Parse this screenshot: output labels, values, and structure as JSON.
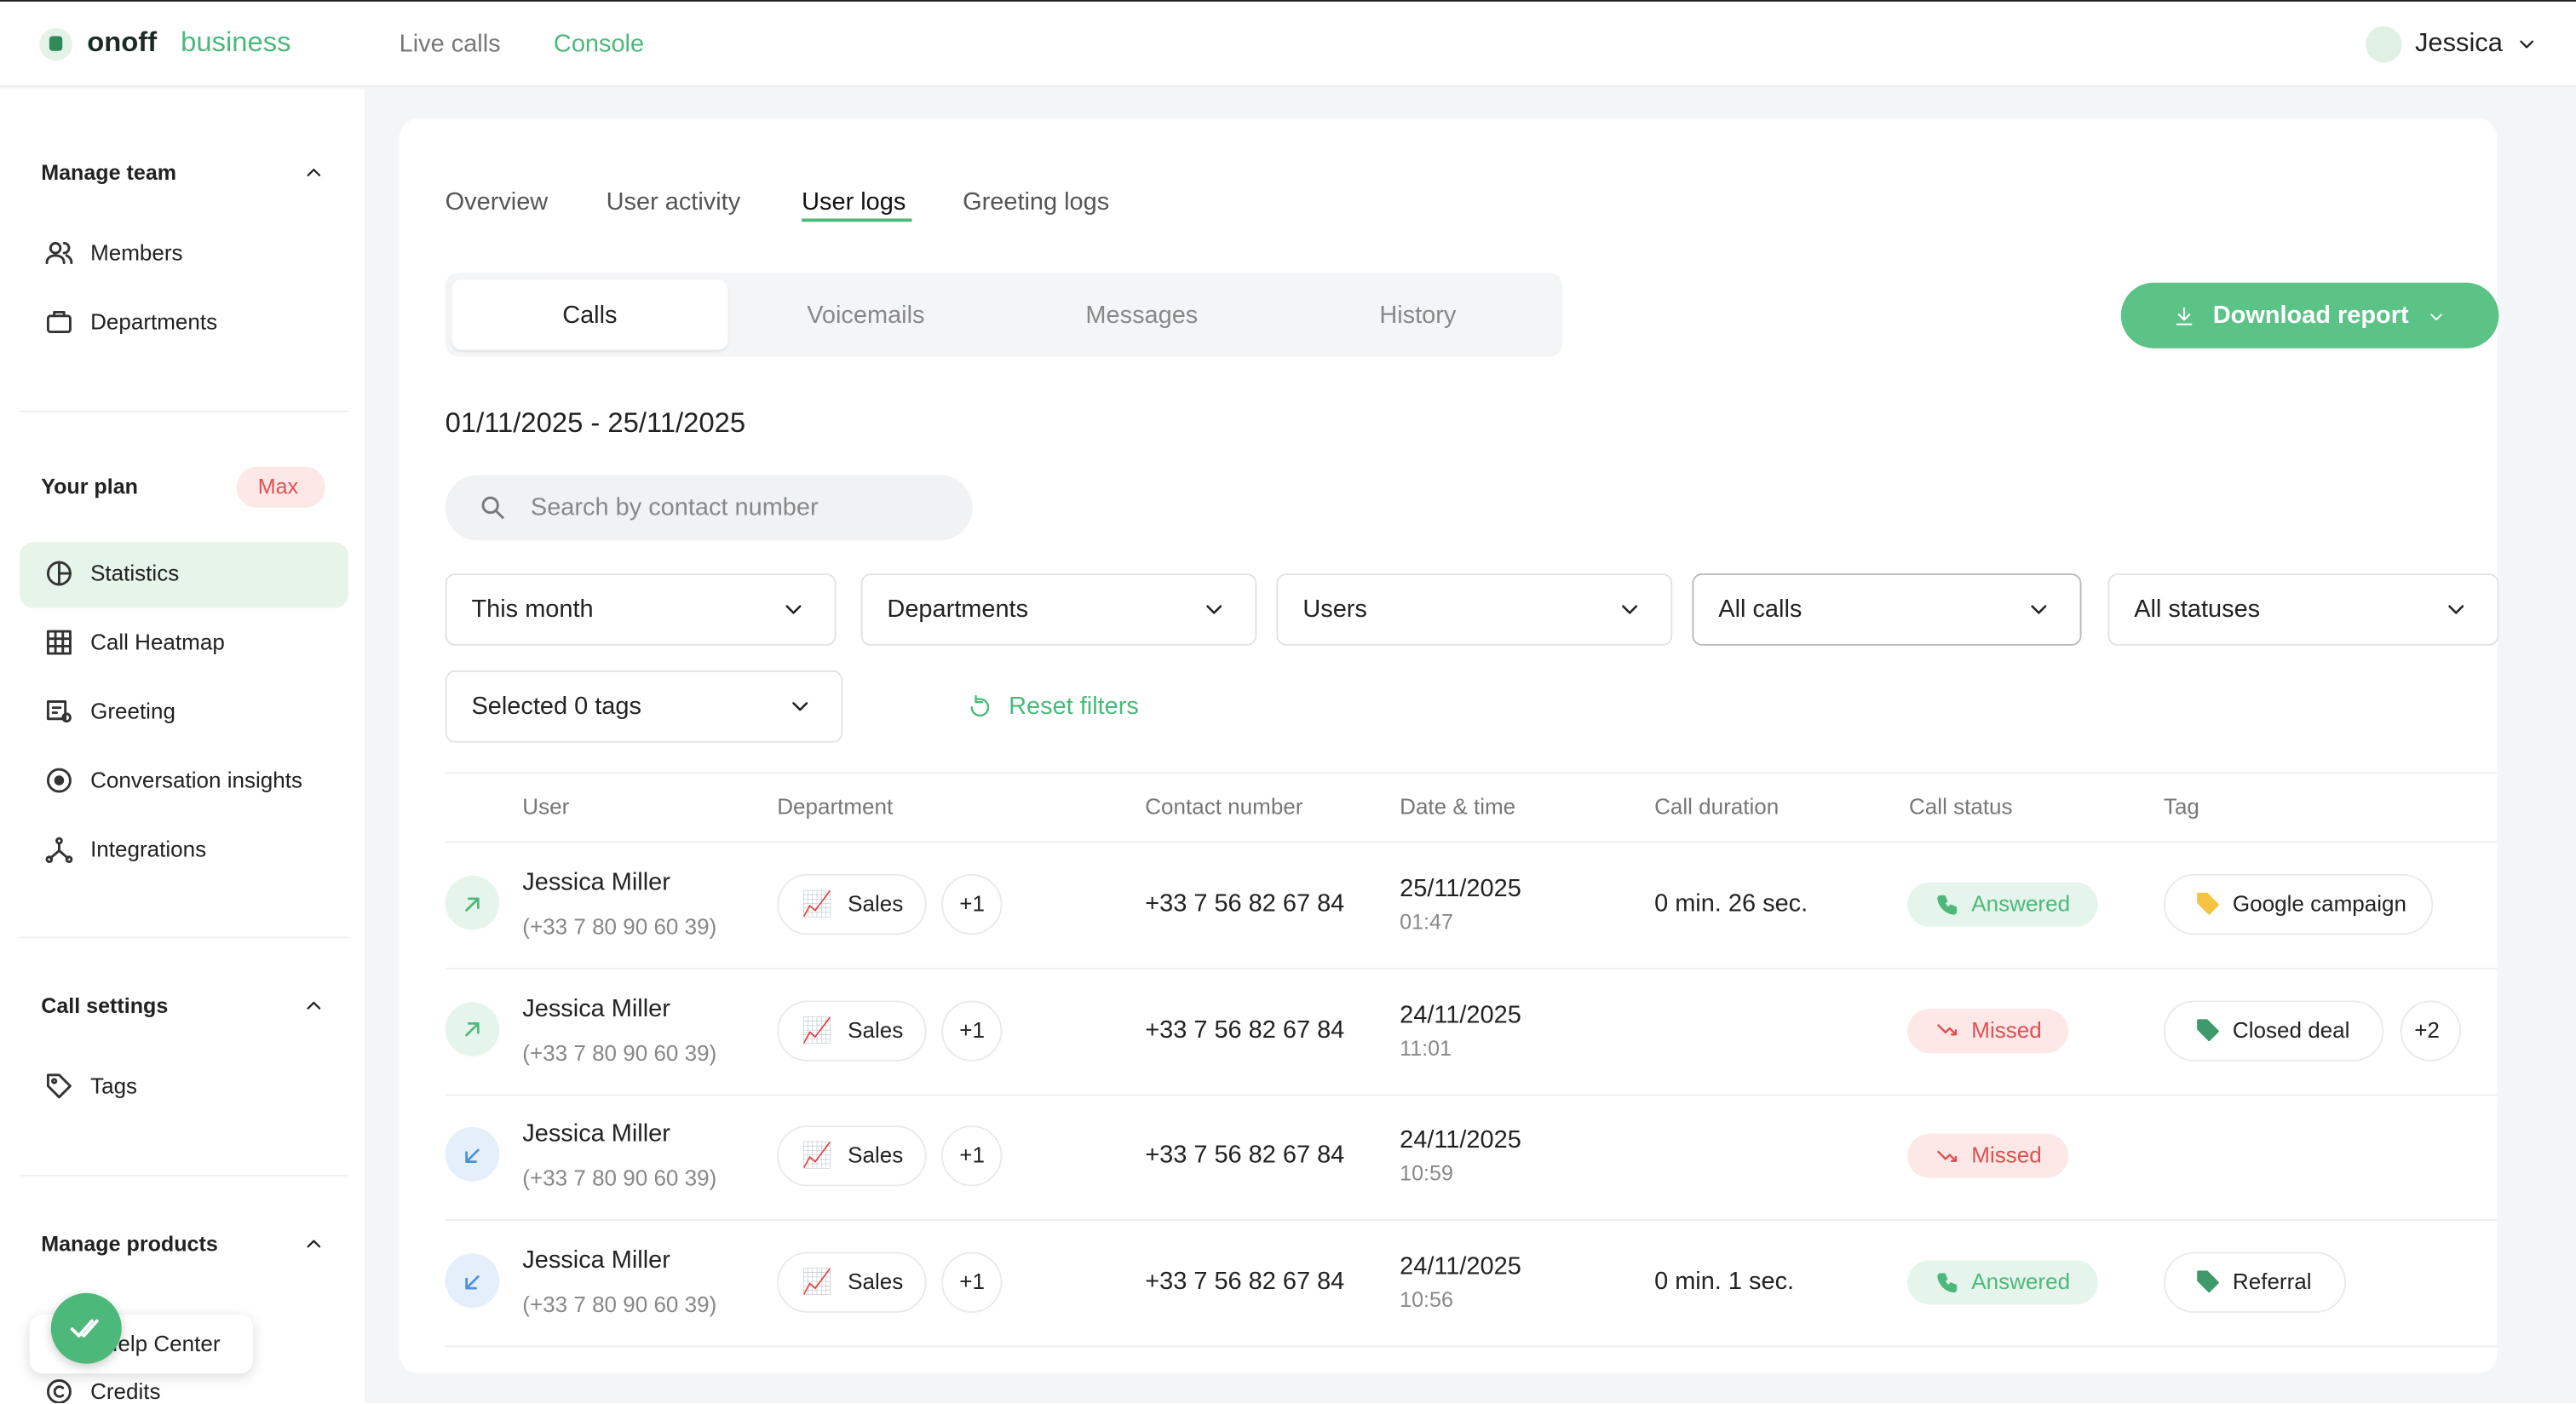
{
  "header": {
    "brand": "onoff",
    "brand_suffix": "business",
    "nav": [
      "Live calls",
      "Console"
    ],
    "user": "Jessica"
  },
  "sidebar": {
    "sections": [
      {
        "title": "Manage team",
        "items": [
          "Members",
          "Departments"
        ]
      },
      {
        "title": "Your plan",
        "badge": "Max",
        "items": [
          "Statistics",
          "Call Heatmap",
          "Greeting",
          "Conversation insights",
          "Integrations"
        ]
      },
      {
        "title": "Call settings",
        "items": [
          "Tags"
        ]
      },
      {
        "title": "Manage products",
        "items": [
          "Credits"
        ]
      }
    ],
    "help": "Help Center"
  },
  "tabs": [
    "Overview",
    "User activity",
    "User logs",
    "Greeting logs"
  ],
  "subtabs": [
    "Calls",
    "Voicemails",
    "Messages",
    "History"
  ],
  "download": "Download report",
  "date_range": "01/11/2025 - 25/11/2025",
  "search_placeholder": "Search by contact number",
  "filters": [
    "This month",
    "Departments",
    "Users",
    "All calls",
    "All statuses",
    "Selected 0 tags"
  ],
  "reset": "Reset filters",
  "table": {
    "columns": [
      "User",
      "Department",
      "Contact number",
      "Date & time",
      "Call duration",
      "Call status",
      "Tag"
    ],
    "rows": [
      {
        "user": "Jessica Miller",
        "phone": "(+33 7 80 90 60 39)",
        "department": "Sales",
        "dept_more": "+1",
        "contact": "+33 7 56 82 67 84",
        "date": "25/11/2025",
        "time": "01:47",
        "duration": "0 min. 26 sec.",
        "status": "Answered",
        "tag": "Google campaign"
      },
      {
        "user": "Jessica Miller",
        "phone": "(+33 7 80 90 60 39)",
        "department": "Sales",
        "dept_more": "+1",
        "contact": "+33 7 56 82 67 84",
        "date": "24/11/2025",
        "time": "11:01",
        "status": "Missed",
        "tag": "Closed deal",
        "tag_more": "+2"
      },
      {
        "user": "Jessica Miller",
        "phone": "(+33 7 80 90 60 39)",
        "department": "Sales",
        "dept_more": "+1",
        "contact": "+33 7 56 82 67 84",
        "date": "24/11/2025",
        "time": "10:59",
        "status": "Missed"
      },
      {
        "user": "Jessica Miller",
        "phone": "(+33 7 80 90 60 39)",
        "department": "Sales",
        "dept_more": "+1",
        "contact": "+33 7 56 82 67 84",
        "date": "24/11/2025",
        "time": "10:56",
        "duration": "0 min. 1 sec.",
        "status": "Answered",
        "tag": "Referral"
      }
    ]
  }
}
